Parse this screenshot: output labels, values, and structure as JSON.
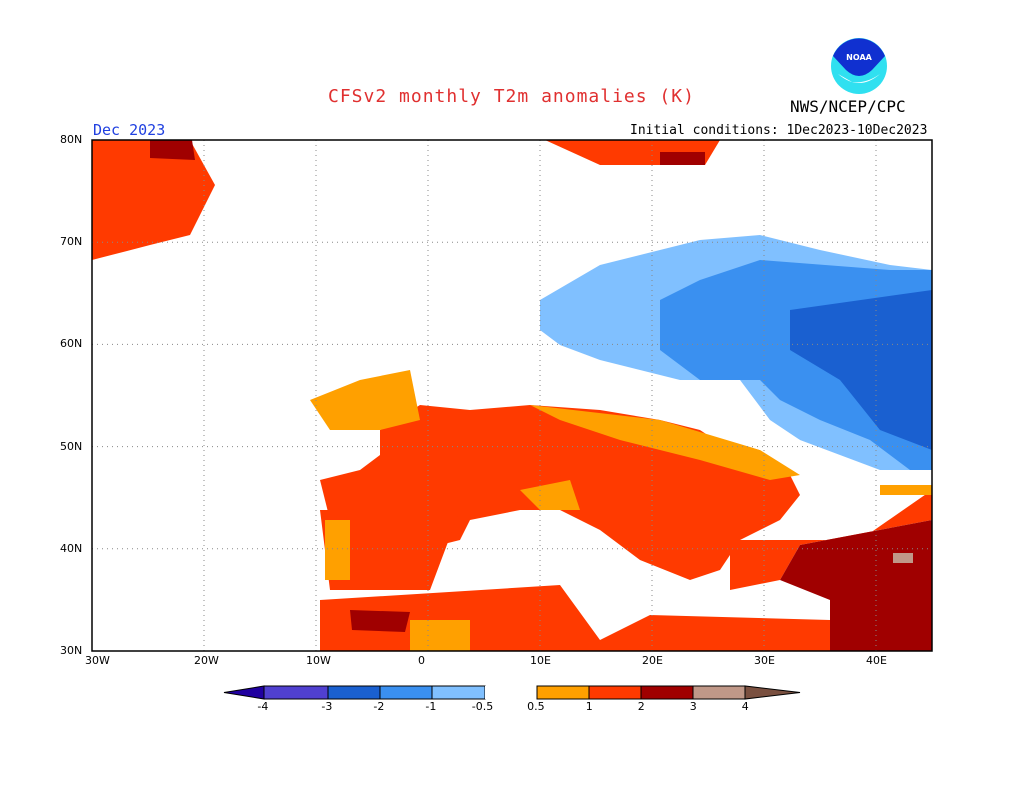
{
  "title": "CFSv2 monthly T2m anomalies (K)",
  "organization": "NWS/NCEP/CPC",
  "logo_text": "NOAA",
  "valid_month": "Dec 2023",
  "initial_conditions": "Initial conditions: 1Dec2023-10Dec2023",
  "map": {
    "lon_range": [
      -30,
      45
    ],
    "lat_range": [
      30,
      80
    ],
    "grid": "dotted, every 10 degrees",
    "lat_labels": [
      "30N",
      "40N",
      "50N",
      "60N",
      "70N",
      "80N"
    ],
    "lon_labels": [
      "30W",
      "20W",
      "10W",
      "0",
      "10E",
      "20E",
      "30E",
      "40E"
    ]
  },
  "colorbar": {
    "tick_labels": [
      "-4",
      "-3",
      "-2",
      "-1",
      "-0.5",
      "0.5",
      "1",
      "2",
      "3",
      "4"
    ],
    "colors": {
      "lt-4": "#2000a0",
      "-4to-3": "#5040d0",
      "-3to-2": "#1a60d0",
      "-2to-1": "#3a90f0",
      "-1to-0.5": "#80c0ff",
      "-0.5to0.5": "#ffffff",
      "0.5to1": "#ffa000",
      "1to2": "#ff3a00",
      "2to3": "#a00000",
      "3to4": "#c09888",
      "gt4": "#7a5040"
    }
  }
}
